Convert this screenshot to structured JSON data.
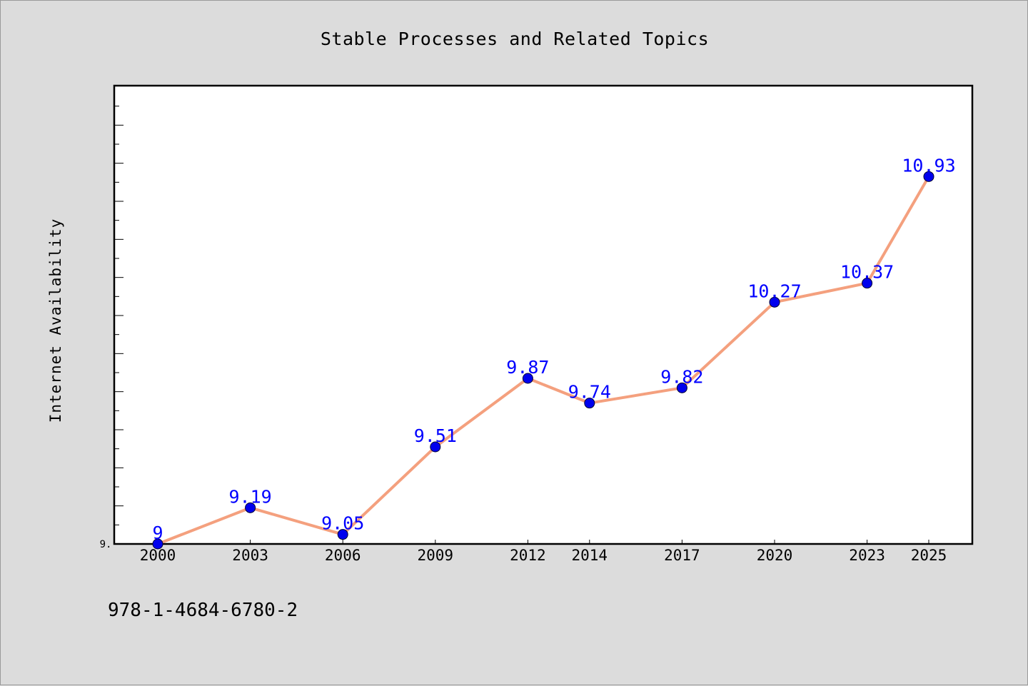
{
  "chart_data": {
    "type": "line",
    "title": "Stable Processes and Related Topics",
    "xlabel": "",
    "ylabel": "Internet Availability",
    "categories": [
      "2000",
      "2003",
      "2006",
      "2009",
      "2012",
      "2014",
      "2017",
      "2020",
      "2023",
      "2025"
    ],
    "series": [
      {
        "values": [
          9,
          9.19,
          9.05,
          9.51,
          9.87,
          9.74,
          9.82,
          10.27,
          10.37,
          10.93
        ],
        "labels": [
          "9",
          "9.19",
          "9.05",
          "9.51",
          "9.87",
          "9.74",
          "9.82",
          "10.27",
          "10.37",
          "10.93"
        ],
        "line_color": "#f4a07e",
        "marker_color": "#0000ee"
      }
    ],
    "ylim": [
      9,
      11.4
    ],
    "y_tick_labels": [
      "9."
    ],
    "grid": false,
    "legend": "none"
  },
  "footer": {
    "isbn": "978-1-4684-6780-2"
  },
  "colors": {
    "background": "#dcdcdc",
    "plot_background": "#ffffff",
    "data_labels": "#0000ff"
  }
}
